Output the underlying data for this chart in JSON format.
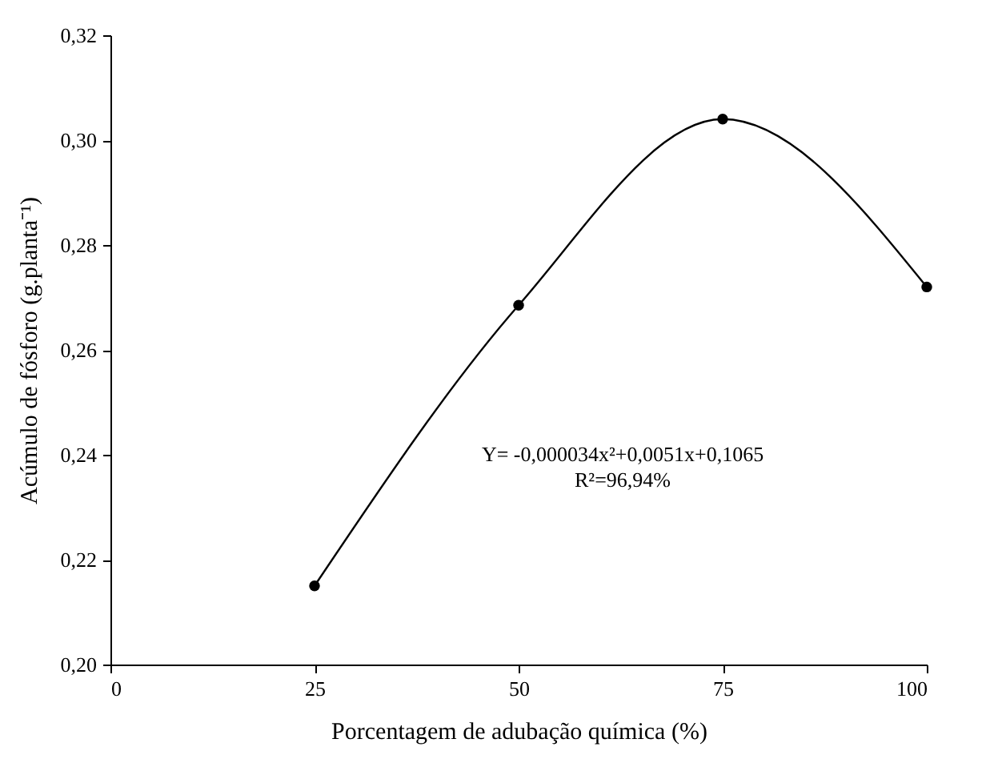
{
  "chart_data": {
    "type": "line",
    "xlabel": "Porcentagem de adubação química (%)",
    "ylabel": "Acúmulo de fósforo (g.planta⁻¹)",
    "x": [
      25,
      50,
      75,
      100
    ],
    "series": [
      {
        "color": "#000000",
        "values": [
          0.215,
          0.2685,
          0.304,
          0.272
        ]
      }
    ],
    "xlim": [
      0,
      100
    ],
    "xticks": [
      0,
      25,
      50,
      75,
      100
    ],
    "ylim": [
      0.2,
      0.32
    ],
    "yticks": [
      {
        "value": 0.2,
        "label": "0,20"
      },
      {
        "value": 0.22,
        "label": "0,22"
      },
      {
        "value": 0.24,
        "label": "0,24"
      },
      {
        "value": 0.26,
        "label": "0,26"
      },
      {
        "value": 0.28,
        "label": "0,28"
      },
      {
        "value": 0.3,
        "label": "0,30"
      },
      {
        "value": 0.32,
        "label": "0,32"
      }
    ],
    "marker": "circle",
    "line_style": "solid",
    "annotations": [
      "Y= -0,000034x²+0,0051x+0,1065",
      "R²=96,94%"
    ]
  }
}
